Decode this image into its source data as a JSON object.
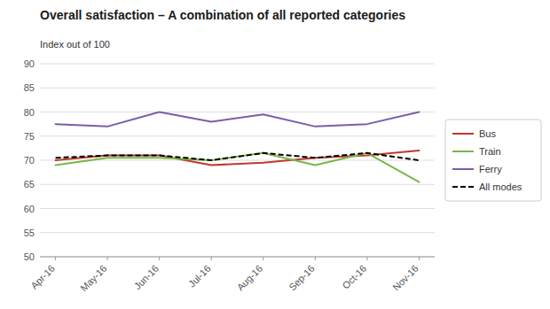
{
  "chart_data": {
    "type": "line",
    "title": "Overall satisfaction – A combination of all reported categories",
    "ylabel": "Index out of 100",
    "categories": [
      "Apr-16",
      "May-16",
      "Jun-16",
      "Jul-16",
      "Aug-16",
      "Sep-16",
      "Oct-16",
      "Nov-16"
    ],
    "series": [
      {
        "name": "Bus",
        "color": "#c0392b",
        "values": [
          70.0,
          71.0,
          71.0,
          69.0,
          69.5,
          70.5,
          71.0,
          72.0
        ]
      },
      {
        "name": "Train",
        "color": "#7ab648",
        "values": [
          69.0,
          70.5,
          70.5,
          70.0,
          71.5,
          69.0,
          71.5,
          65.5
        ]
      },
      {
        "name": "Ferry",
        "color": "#7b5ea7",
        "values": [
          77.5,
          77.0,
          80.0,
          78.0,
          79.5,
          77.0,
          77.5,
          80.0
        ]
      },
      {
        "name": "All modes",
        "color": "#000000",
        "line_style": "dashed",
        "values": [
          70.5,
          71.0,
          71.0,
          70.0,
          71.5,
          70.5,
          71.5,
          70.0
        ]
      }
    ],
    "ylim": [
      50,
      90
    ],
    "yticks": [
      50,
      55,
      60,
      65,
      70,
      75,
      80,
      85,
      90
    ],
    "grid": true,
    "legend": "right"
  }
}
